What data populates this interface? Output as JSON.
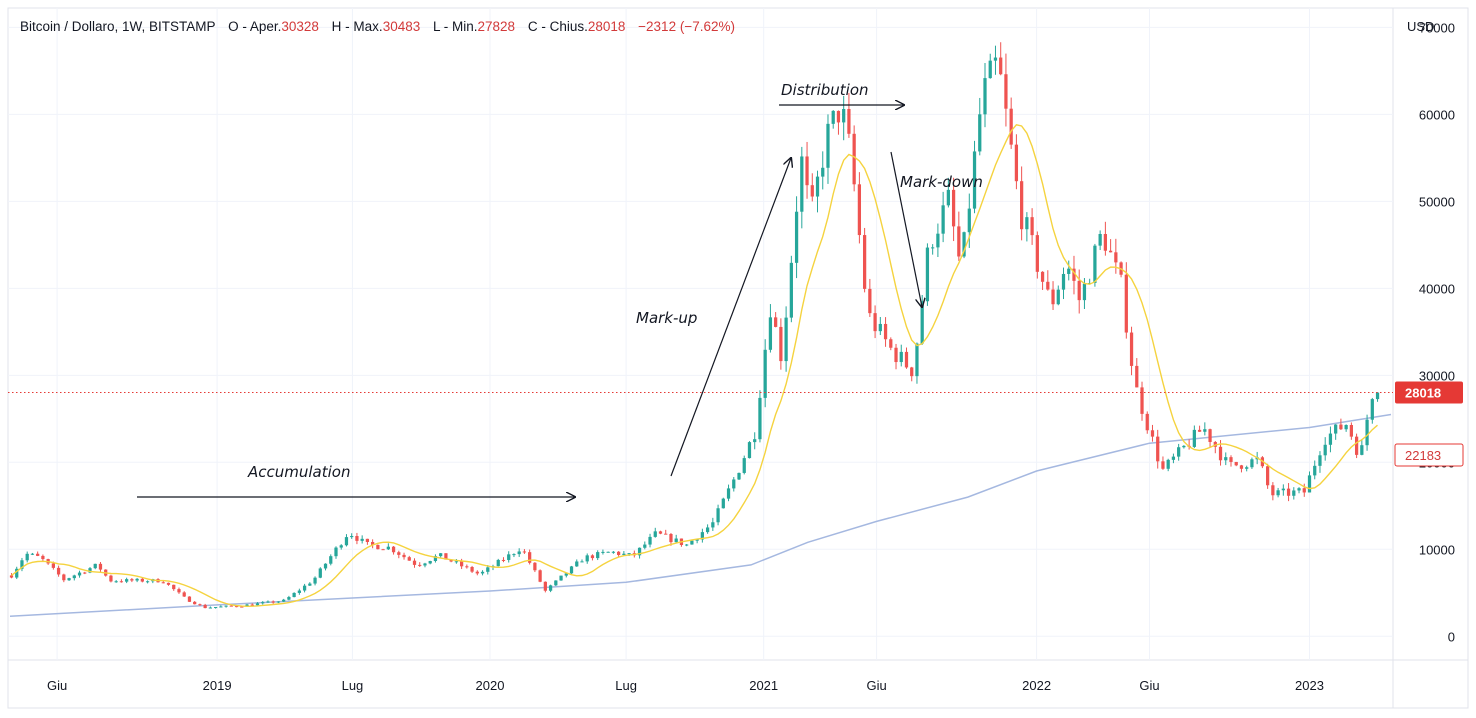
{
  "header": {
    "symbol": "Bitcoin / Dollaro, 1W, BITSTAMP",
    "o_label": "O - Aper.",
    "o_value": "30328",
    "h_label": "H - Max.",
    "h_value": "30483",
    "l_label": "L - Min.",
    "l_value": "27828",
    "c_label": "C - Chius.",
    "c_value": "28018",
    "change": "−2312 (−7.62%)"
  },
  "colors": {
    "up": "#26a69a",
    "down": "#ef5350",
    "fast_ma": "#f5d33f",
    "slow_ma": "#a5b8e0",
    "last_price": "#e53935",
    "ma_badge": "#e53935"
  },
  "chart_data": {
    "type": "candlestick",
    "currency_label": "USD",
    "ylim": [
      -2500,
      72000
    ],
    "y_ticks": [
      0,
      10000,
      20000,
      30000,
      40000,
      50000,
      60000,
      70000
    ],
    "y_tick_labels": [
      "0",
      "10000",
      "20000",
      "30000",
      "40000",
      "50000",
      "60000",
      "70000"
    ],
    "x_range": [
      "2018-03-30",
      "2023-04-20"
    ],
    "x_ticks": [
      {
        "date": "2018-06-01",
        "label": "Giu"
      },
      {
        "date": "2019-01-01",
        "label": "2019"
      },
      {
        "date": "2019-07-01",
        "label": "Lug"
      },
      {
        "date": "2020-01-01",
        "label": "2020"
      },
      {
        "date": "2020-07-01",
        "label": "Lug"
      },
      {
        "date": "2021-01-01",
        "label": "2021"
      },
      {
        "date": "2021-06-01",
        "label": "Giu"
      },
      {
        "date": "2022-01-01",
        "label": "2022"
      },
      {
        "date": "2022-06-01",
        "label": "Giu"
      },
      {
        "date": "2023-01-01",
        "label": "2023"
      }
    ],
    "price_anchors": [
      [
        "2018-04-01",
        7000
      ],
      [
        "2018-04-20",
        9500
      ],
      [
        "2018-05-10",
        9000
      ],
      [
        "2018-06-10",
        6500
      ],
      [
        "2018-07-25",
        8200
      ],
      [
        "2018-08-10",
        6400
      ],
      [
        "2018-10-20",
        6400
      ],
      [
        "2018-11-20",
        4300
      ],
      [
        "2018-12-15",
        3300
      ],
      [
        "2019-02-01",
        3500
      ],
      [
        "2019-04-01",
        4100
      ],
      [
        "2019-05-10",
        6500
      ],
      [
        "2019-06-26",
        12000
      ],
      [
        "2019-07-20",
        10500
      ],
      [
        "2019-08-20",
        10200
      ],
      [
        "2019-09-25",
        8200
      ],
      [
        "2019-10-25",
        9300
      ],
      [
        "2019-12-18",
        7100
      ],
      [
        "2020-02-12",
        10200
      ],
      [
        "2020-03-15",
        5200
      ],
      [
        "2020-05-05",
        9000
      ],
      [
        "2020-06-10",
        9700
      ],
      [
        "2020-07-10",
        9200
      ],
      [
        "2020-08-10",
        11800
      ],
      [
        "2020-09-20",
        10500
      ],
      [
        "2020-10-25",
        13000
      ],
      [
        "2020-11-25",
        18500
      ],
      [
        "2020-12-20",
        23500
      ],
      [
        "2021-01-10",
        38000
      ],
      [
        "2021-01-25",
        32000
      ],
      [
        "2021-02-20",
        55000
      ],
      [
        "2021-03-05",
        48000
      ],
      [
        "2021-03-25",
        57000
      ],
      [
        "2021-04-14",
        61000
      ],
      [
        "2021-04-28",
        55000
      ],
      [
        "2021-05-20",
        37000
      ],
      [
        "2021-06-20",
        33000
      ],
      [
        "2021-07-20",
        30500
      ],
      [
        "2021-08-10",
        45000
      ],
      [
        "2021-09-05",
        50000
      ],
      [
        "2021-09-22",
        42000
      ],
      [
        "2021-10-20",
        62000
      ],
      [
        "2021-11-10",
        66000
      ],
      [
        "2021-12-10",
        49000
      ],
      [
        "2022-01-20",
        38000
      ],
      [
        "2022-02-10",
        43000
      ],
      [
        "2022-02-28",
        38500
      ],
      [
        "2022-03-30",
        46500
      ],
      [
        "2022-04-25",
        40000
      ],
      [
        "2022-05-12",
        29000
      ],
      [
        "2022-06-18",
        19000
      ],
      [
        "2022-08-12",
        24000
      ],
      [
        "2022-09-15",
        19500
      ],
      [
        "2022-10-25",
        20300
      ],
      [
        "2022-11-10",
        16300
      ],
      [
        "2022-12-25",
        16600
      ],
      [
        "2023-01-20",
        22700
      ],
      [
        "2023-02-20",
        24500
      ],
      [
        "2023-03-10",
        20500
      ],
      [
        "2023-03-25",
        28000
      ],
      [
        "2023-04-03",
        28018
      ]
    ],
    "last_price": 28018,
    "last_price_label": "28018",
    "ma_value_label": "22183",
    "annotations": [
      {
        "text": "Accumulation"
      },
      {
        "text": "Mark-up"
      },
      {
        "text": "Distribution"
      },
      {
        "text": "Mark-down"
      }
    ],
    "series": [
      {
        "type": "candles"
      },
      {
        "type": "line",
        "color": "#f5d33f"
      },
      {
        "type": "line",
        "color": "#a5b8e0"
      }
    ]
  }
}
